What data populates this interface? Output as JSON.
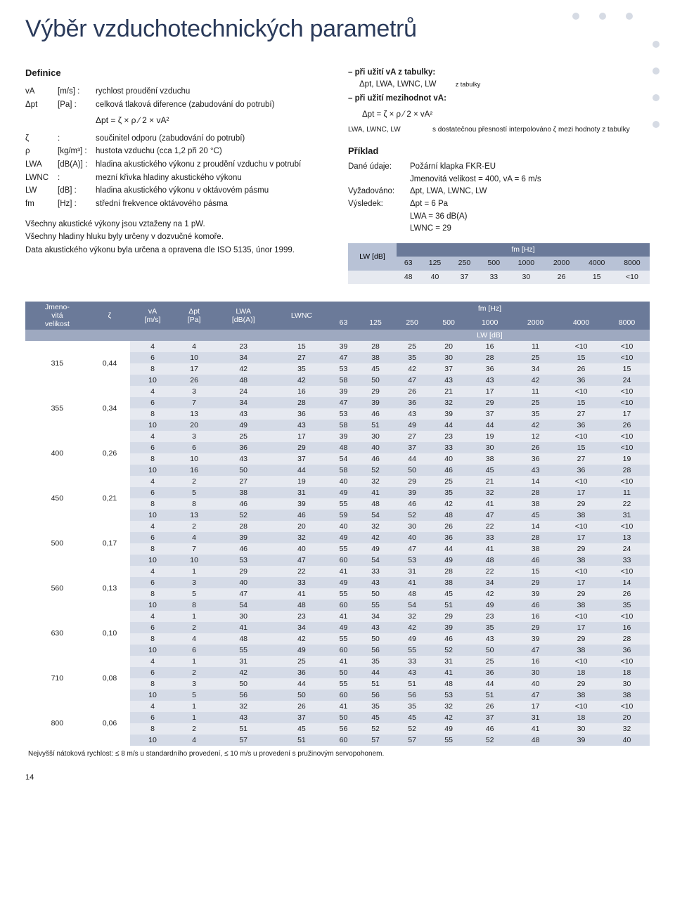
{
  "colors": {
    "heading": "#2a3a5a",
    "dot": "#d6dbe4",
    "table_head_dark": "#6b7a99",
    "table_head_mid": "#9ea9c0",
    "table_head_light": "#b8c2d6",
    "row_a": "#e6e9f0",
    "row_b": "#d5dbe7",
    "white": "#ffffff",
    "text": "#1a1a1a"
  },
  "typography": {
    "h1_fontsize": 34,
    "body_fontsize": 11.5,
    "table_fontsize": 10.5,
    "small_fontsize": 10,
    "font_family": "Arial, Helvetica, sans-serif"
  },
  "page_title": "Výběr vzduchotechnických parametrů",
  "definitions_title": "Definice",
  "definitions": [
    {
      "sym": "vA",
      "unit": "[m/s] :",
      "desc": "rychlost proudění vzduchu"
    },
    {
      "sym": "Δpt",
      "unit": "[Pa] :",
      "desc": "celková tlaková diference (zabudování do potrubí)"
    }
  ],
  "formula_center": "Δpt = ζ × ρ ⁄ 2 × vA²",
  "definitions2": [
    {
      "sym": "ζ",
      "unit": ":",
      "desc": "součinitel odporu (zabudování do potrubí)"
    },
    {
      "sym": "ρ",
      "unit": "[kg/m³] :",
      "desc": "hustota vzduchu (cca 1,2 při 20 °C)"
    },
    {
      "sym": "LWA",
      "unit": "[dB(A)] :",
      "desc": "hladina akustického výkonu z proudění vzduchu v potrubí"
    },
    {
      "sym": "LWNC",
      "unit": ":",
      "desc": "mezní křivka hladiny akustického výkonu"
    },
    {
      "sym": "LW",
      "unit": "[dB] :",
      "desc": "hladina akustického výkonu v oktávovém pásmu"
    },
    {
      "sym": "fm",
      "unit": "[Hz] :",
      "desc": "střední frekvence oktávového pásma"
    }
  ],
  "notes": [
    "Všechny akustické výkony jsou vztaženy na 1 pW.",
    "Všechny hladiny hluku byly určeny v dozvučné komoře.",
    "Data akustického výkonu byla určena a opravena dle ISO 5135, únor 1999."
  ],
  "right": {
    "line1a": "– při užití vA z tabulky:",
    "line1b": "Δpt, LWA, LWNC, LW",
    "line1c": "z tabulky",
    "line2a": "– při užití mezihodnot vA:",
    "formula": "Δpt = ζ × ρ ⁄ 2 × vA²",
    "interp_sym": "LWA, LWNC, LW",
    "interp_desc": "s dostatečnou přesností interpolováno ζ mezi hodnoty z tabulky",
    "example_title": "Příklad",
    "example": [
      {
        "k": "Dané údaje:",
        "v": "Požární klapka FKR-EU"
      },
      {
        "k": "",
        "v": "Jmenovitá velikost = 400, vA = 6 m/s"
      },
      {
        "k": "Vyžadováno:",
        "v": "Δpt, LWA, LWNC, LW"
      },
      {
        "k": "Výsledek:",
        "v": "Δpt  = 6 Pa"
      },
      {
        "k": "",
        "v": "LWA  = 36 dB(A)"
      },
      {
        "k": "",
        "v": "LWNC = 29"
      }
    ]
  },
  "fm_table": {
    "left_head": "LW [dB]",
    "top_head": "fm [Hz]",
    "freqs": [
      "63",
      "125",
      "250",
      "500",
      "1000",
      "2000",
      "4000",
      "8000"
    ],
    "values": [
      "48",
      "40",
      "37",
      "33",
      "30",
      "26",
      "15",
      "<10"
    ]
  },
  "big_table": {
    "top_labels": {
      "nominal": "Jmeno-\nvitá\nvelikost",
      "zeta": "ζ",
      "va": "vA\n[m/s]",
      "dpt": "Δpt\n[Pa]",
      "lwa": "LWA\n[dB(A)]",
      "lwnc": "LWNC",
      "fm": "fm [Hz]",
      "lwdb": "LW [dB]"
    },
    "freqs": [
      "63",
      "125",
      "250",
      "500",
      "1000",
      "2000",
      "4000",
      "8000"
    ],
    "groups": [
      {
        "size": "315",
        "zeta": "0,44",
        "rows": [
          [
            "4",
            "4",
            "23",
            "15",
            "39",
            "28",
            "25",
            "20",
            "16",
            "11",
            "<10",
            "<10"
          ],
          [
            "6",
            "10",
            "34",
            "27",
            "47",
            "38",
            "35",
            "30",
            "28",
            "25",
            "15",
            "<10"
          ],
          [
            "8",
            "17",
            "42",
            "35",
            "53",
            "45",
            "42",
            "37",
            "36",
            "34",
            "26",
            "15"
          ],
          [
            "10",
            "26",
            "48",
            "42",
            "58",
            "50",
            "47",
            "43",
            "43",
            "42",
            "36",
            "24"
          ]
        ]
      },
      {
        "size": "355",
        "zeta": "0,34",
        "rows": [
          [
            "4",
            "3",
            "24",
            "16",
            "39",
            "29",
            "26",
            "21",
            "17",
            "11",
            "<10",
            "<10"
          ],
          [
            "6",
            "7",
            "34",
            "28",
            "47",
            "39",
            "36",
            "32",
            "29",
            "25",
            "15",
            "<10"
          ],
          [
            "8",
            "13",
            "43",
            "36",
            "53",
            "46",
            "43",
            "39",
            "37",
            "35",
            "27",
            "17"
          ],
          [
            "10",
            "20",
            "49",
            "43",
            "58",
            "51",
            "49",
            "44",
            "44",
            "42",
            "36",
            "26"
          ]
        ]
      },
      {
        "size": "400",
        "zeta": "0,26",
        "rows": [
          [
            "4",
            "3",
            "25",
            "17",
            "39",
            "30",
            "27",
            "23",
            "19",
            "12",
            "<10",
            "<10"
          ],
          [
            "6",
            "6",
            "36",
            "29",
            "48",
            "40",
            "37",
            "33",
            "30",
            "26",
            "15",
            "<10"
          ],
          [
            "8",
            "10",
            "43",
            "37",
            "54",
            "46",
            "44",
            "40",
            "38",
            "36",
            "27",
            "19"
          ],
          [
            "10",
            "16",
            "50",
            "44",
            "58",
            "52",
            "50",
            "46",
            "45",
            "43",
            "36",
            "28"
          ]
        ]
      },
      {
        "size": "450",
        "zeta": "0,21",
        "rows": [
          [
            "4",
            "2",
            "27",
            "19",
            "40",
            "32",
            "29",
            "25",
            "21",
            "14",
            "<10",
            "<10"
          ],
          [
            "6",
            "5",
            "38",
            "31",
            "49",
            "41",
            "39",
            "35",
            "32",
            "28",
            "17",
            "11"
          ],
          [
            "8",
            "8",
            "46",
            "39",
            "55",
            "48",
            "46",
            "42",
            "41",
            "38",
            "29",
            "22"
          ],
          [
            "10",
            "13",
            "52",
            "46",
            "59",
            "54",
            "52",
            "48",
            "47",
            "45",
            "38",
            "31"
          ]
        ]
      },
      {
        "size": "500",
        "zeta": "0,17",
        "rows": [
          [
            "4",
            "2",
            "28",
            "20",
            "40",
            "32",
            "30",
            "26",
            "22",
            "14",
            "<10",
            "<10"
          ],
          [
            "6",
            "4",
            "39",
            "32",
            "49",
            "42",
            "40",
            "36",
            "33",
            "28",
            "17",
            "13"
          ],
          [
            "8",
            "7",
            "46",
            "40",
            "55",
            "49",
            "47",
            "44",
            "41",
            "38",
            "29",
            "24"
          ],
          [
            "10",
            "10",
            "53",
            "47",
            "60",
            "54",
            "53",
            "49",
            "48",
            "46",
            "38",
            "33"
          ]
        ]
      },
      {
        "size": "560",
        "zeta": "0,13",
        "rows": [
          [
            "4",
            "1",
            "29",
            "22",
            "41",
            "33",
            "31",
            "28",
            "22",
            "15",
            "<10",
            "<10"
          ],
          [
            "6",
            "3",
            "40",
            "33",
            "49",
            "43",
            "41",
            "38",
            "34",
            "29",
            "17",
            "14"
          ],
          [
            "8",
            "5",
            "47",
            "41",
            "55",
            "50",
            "48",
            "45",
            "42",
            "39",
            "29",
            "26"
          ],
          [
            "10",
            "8",
            "54",
            "48",
            "60",
            "55",
            "54",
            "51",
            "49",
            "46",
            "38",
            "35"
          ]
        ]
      },
      {
        "size": "630",
        "zeta": "0,10",
        "rows": [
          [
            "4",
            "1",
            "30",
            "23",
            "41",
            "34",
            "32",
            "29",
            "23",
            "16",
            "<10",
            "<10"
          ],
          [
            "6",
            "2",
            "41",
            "34",
            "49",
            "43",
            "42",
            "39",
            "35",
            "29",
            "17",
            "16"
          ],
          [
            "8",
            "4",
            "48",
            "42",
            "55",
            "50",
            "49",
            "46",
            "43",
            "39",
            "29",
            "28"
          ],
          [
            "10",
            "6",
            "55",
            "49",
            "60",
            "56",
            "55",
            "52",
            "50",
            "47",
            "38",
            "36"
          ]
        ]
      },
      {
        "size": "710",
        "zeta": "0,08",
        "rows": [
          [
            "4",
            "1",
            "31",
            "25",
            "41",
            "35",
            "33",
            "31",
            "25",
            "16",
            "<10",
            "<10"
          ],
          [
            "6",
            "2",
            "42",
            "36",
            "50",
            "44",
            "43",
            "41",
            "36",
            "30",
            "18",
            "18"
          ],
          [
            "8",
            "3",
            "50",
            "44",
            "55",
            "51",
            "51",
            "48",
            "44",
            "40",
            "29",
            "30"
          ],
          [
            "10",
            "5",
            "56",
            "50",
            "60",
            "56",
            "56",
            "53",
            "51",
            "47",
            "38",
            "38"
          ]
        ]
      },
      {
        "size": "800",
        "zeta": "0,06",
        "rows": [
          [
            "4",
            "1",
            "32",
            "26",
            "41",
            "35",
            "35",
            "32",
            "26",
            "17",
            "<10",
            "<10"
          ],
          [
            "6",
            "1",
            "43",
            "37",
            "50",
            "45",
            "45",
            "42",
            "37",
            "31",
            "18",
            "20"
          ],
          [
            "8",
            "2",
            "51",
            "45",
            "56",
            "52",
            "52",
            "49",
            "46",
            "41",
            "30",
            "32"
          ],
          [
            "10",
            "4",
            "57",
            "51",
            "60",
            "57",
            "57",
            "55",
            "52",
            "48",
            "39",
            "40"
          ]
        ]
      }
    ],
    "footnote": "Nejvyšší nátoková rychlost: ≤ 8 m/s u standardního provedení, ≤ 10 m/s u provedení s pružinovým servopohonem."
  },
  "page_number": "14"
}
